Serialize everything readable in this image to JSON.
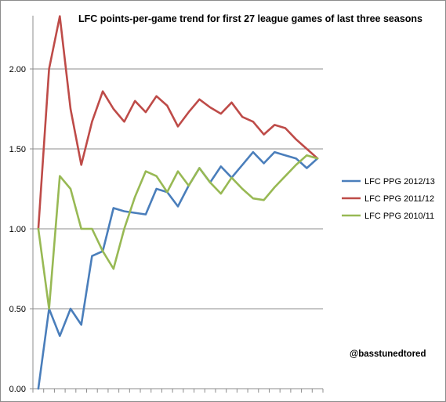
{
  "chart_data": {
    "type": "line",
    "title": "LFC points-per-game trend for first 27 league games of last three seasons",
    "xlabel": "",
    "ylabel": "",
    "ylim": [
      0,
      2.0
    ],
    "yticks": [
      "0.00",
      "0.50",
      "1.00",
      "1.50",
      "2.00"
    ],
    "grid": true,
    "legend_position": "right",
    "x": [
      1,
      2,
      3,
      4,
      5,
      6,
      7,
      8,
      9,
      10,
      11,
      12,
      13,
      14,
      15,
      16,
      17,
      18,
      19,
      20,
      21,
      22,
      23,
      24,
      25,
      26,
      27
    ],
    "series": [
      {
        "name": "LFC PPG 2012/13",
        "color": "#4a7ebb",
        "values": [
          0.0,
          0.5,
          0.33,
          0.5,
          0.4,
          0.83,
          0.86,
          1.13,
          1.11,
          1.1,
          1.09,
          1.25,
          1.23,
          1.14,
          1.27,
          1.38,
          1.29,
          1.39,
          1.32,
          1.4,
          1.48,
          1.41,
          1.48,
          1.46,
          1.44,
          1.38,
          1.44
        ]
      },
      {
        "name": "LFC PPG 2011/12",
        "color": "#be4b48",
        "values": [
          1.0,
          2.0,
          2.33,
          1.75,
          1.4,
          1.67,
          1.86,
          1.75,
          1.67,
          1.8,
          1.73,
          1.83,
          1.77,
          1.64,
          1.73,
          1.81,
          1.76,
          1.72,
          1.79,
          1.7,
          1.67,
          1.59,
          1.65,
          1.63,
          1.56,
          1.5,
          1.44
        ]
      },
      {
        "name": "LFC PPG 2010/11",
        "color": "#98b954",
        "values": [
          1.0,
          0.5,
          1.33,
          1.25,
          1.0,
          1.0,
          0.86,
          0.75,
          1.0,
          1.2,
          1.36,
          1.33,
          1.23,
          1.36,
          1.27,
          1.38,
          1.29,
          1.22,
          1.32,
          1.25,
          1.19,
          1.18,
          1.26,
          1.33,
          1.4,
          1.46,
          1.44
        ]
      }
    ],
    "annotation": "@basstunedtored"
  }
}
